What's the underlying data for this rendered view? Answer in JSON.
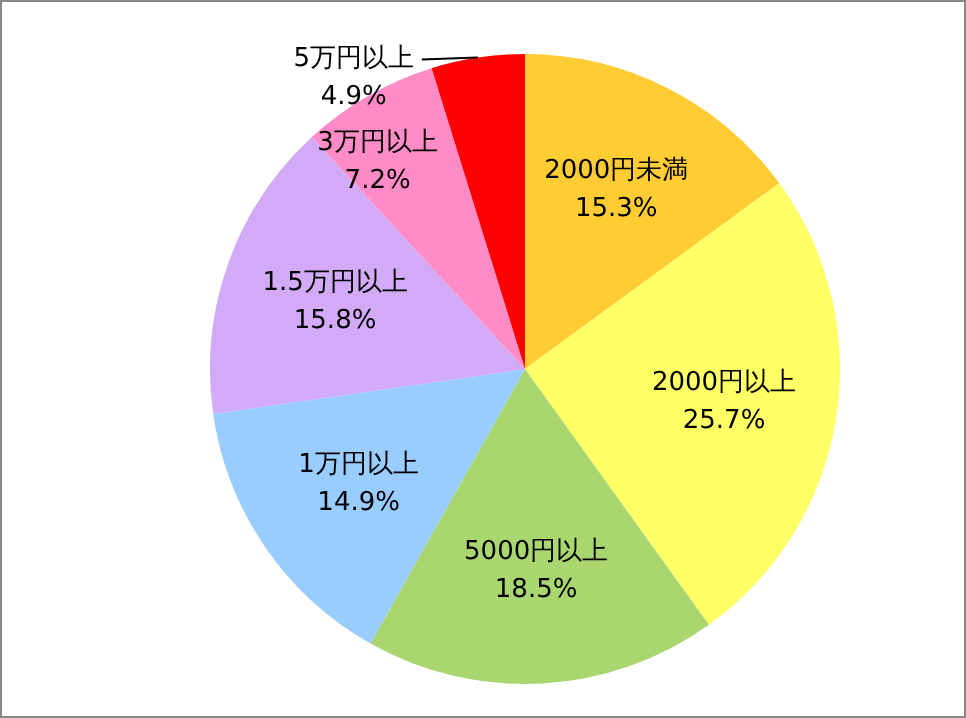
{
  "chart_data": {
    "type": "pie",
    "categories": [
      "2000円未満",
      "2000円以上",
      "5000円以上",
      "1万円以上",
      "1.5万円以上",
      "3万円以上",
      "5万円以上"
    ],
    "values": [
      15.3,
      25.7,
      18.5,
      14.9,
      15.8,
      7.2,
      4.9
    ],
    "colors": [
      "#ffcc33",
      "#ffff66",
      "#a9d66e",
      "#99ccff",
      "#d3aaf7",
      "#ff8cc6",
      "#ff0000"
    ],
    "value_labels": [
      "15.3%",
      "25.7%",
      "18.5%",
      "14.9%",
      "15.8%",
      "7.2%",
      "4.9%"
    ],
    "legend": false
  }
}
